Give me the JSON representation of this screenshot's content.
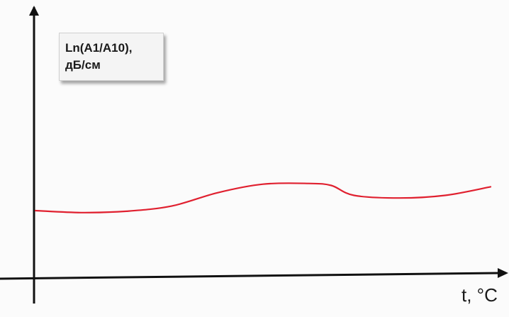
{
  "chart_data": {
    "type": "line",
    "title": "",
    "ylabel_lines": [
      "Ln(A1/A10),",
      "дБ/см"
    ],
    "xlabel": "t, °C",
    "x": [
      0,
      10,
      20,
      30,
      40,
      50,
      60,
      65,
      70,
      80,
      90,
      100
    ],
    "series": [
      {
        "values": [
          10.3,
          10.0,
          10.2,
          11.0,
          13.0,
          14.3,
          14.4,
          14.1,
          12.6,
          12.2,
          12.6,
          13.9
        ]
      }
    ],
    "xlim": [
      0,
      100
    ],
    "ylim": [
      0,
      40
    ],
    "grid": false,
    "axis_ticks": false,
    "colors": {
      "line": "#e0202f",
      "axis": "#111111",
      "label_box": "#f4f4f4"
    }
  }
}
